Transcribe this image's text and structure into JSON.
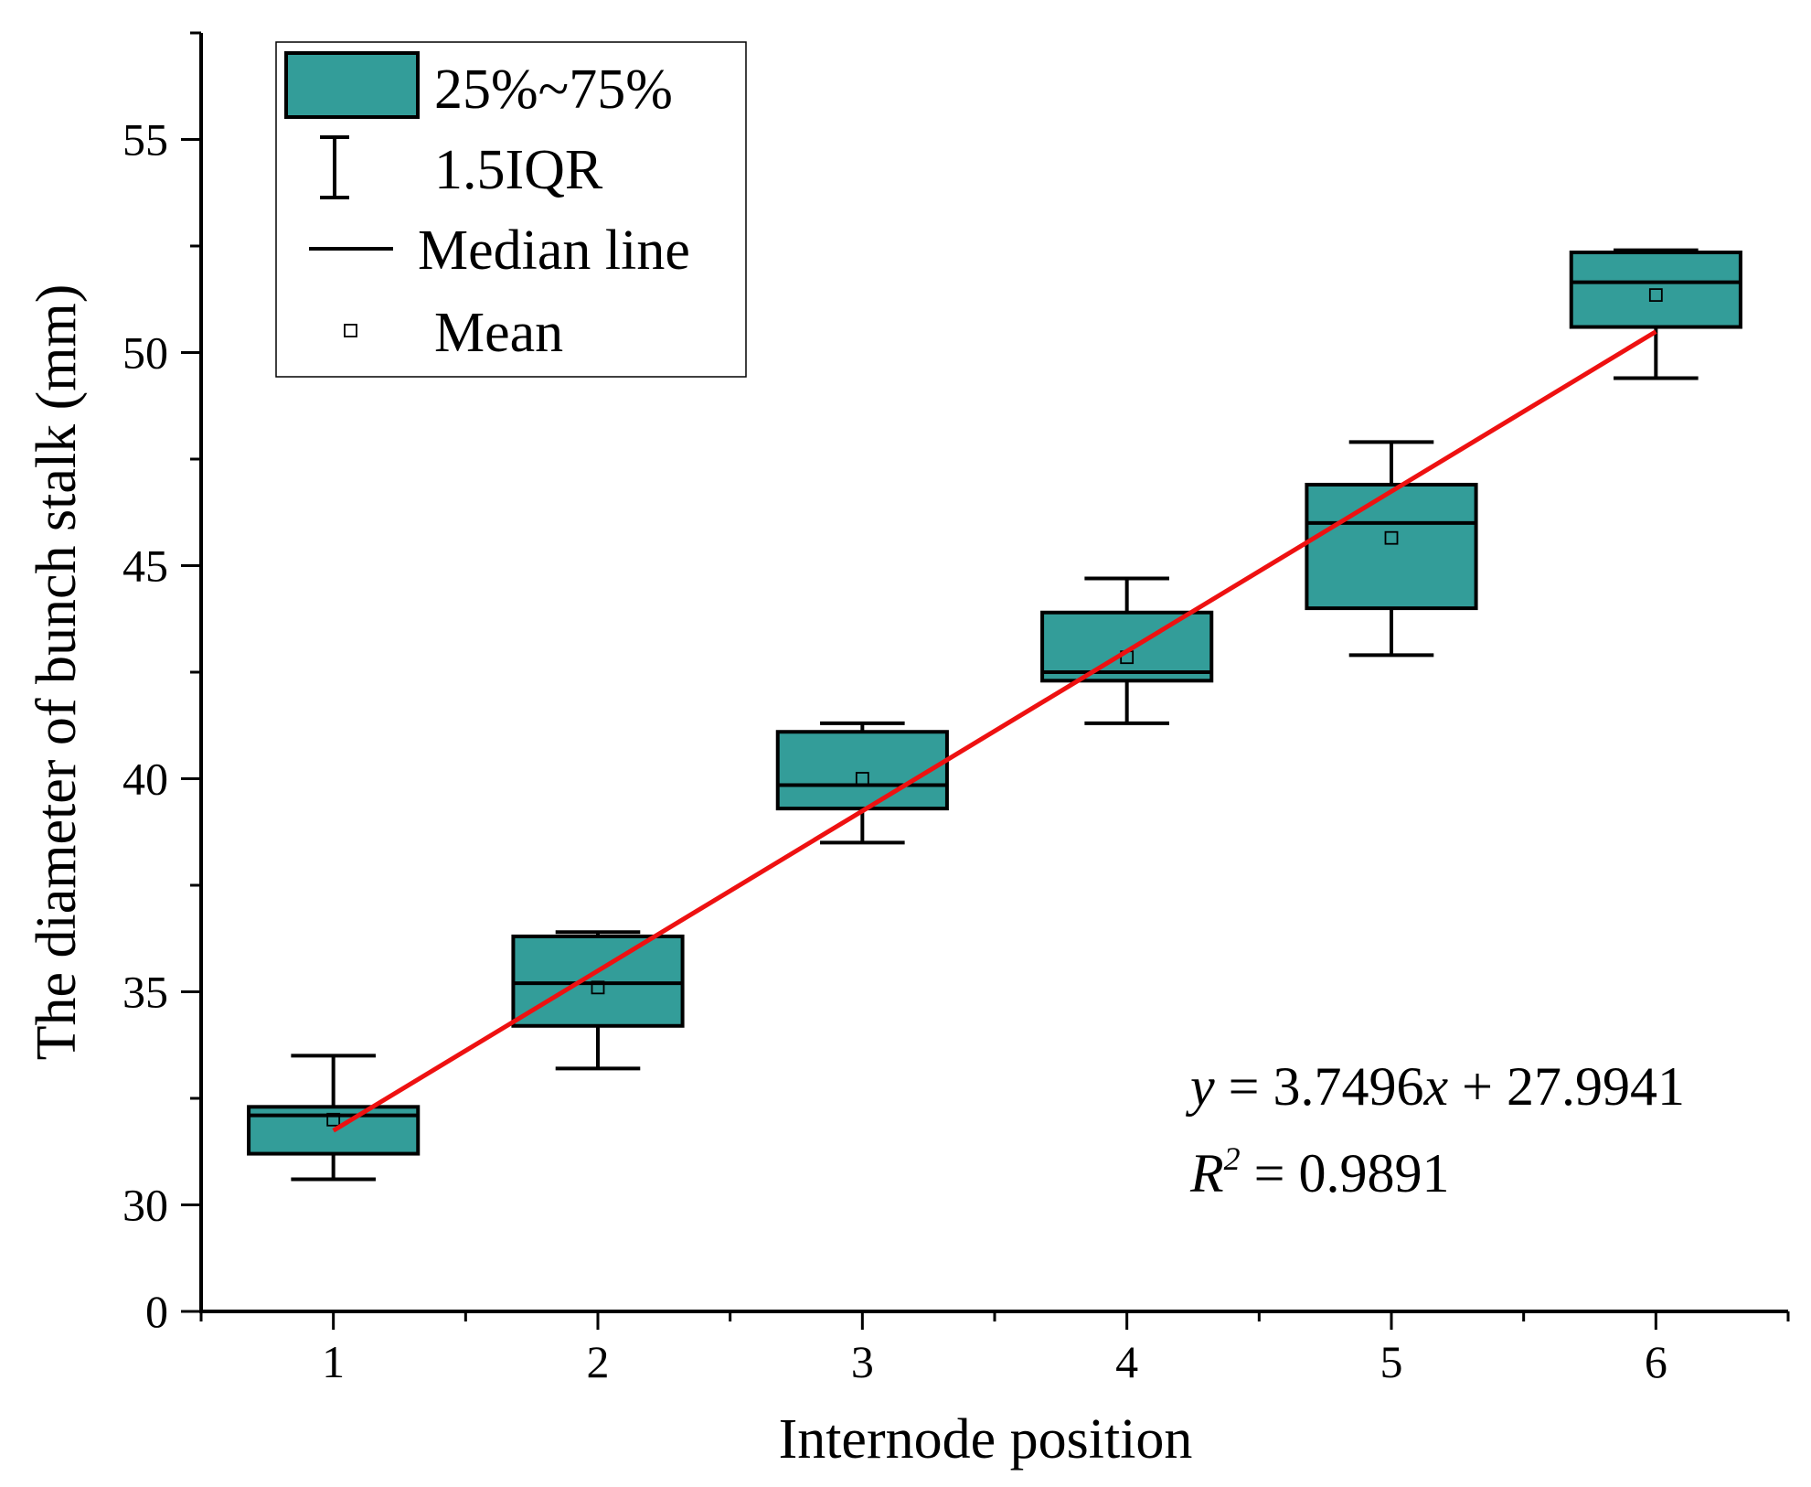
{
  "chart_data": {
    "type": "box",
    "x_label": "Internode position",
    "y_label": "The diameter of bunch stalk (mm)",
    "categories": [
      "1",
      "2",
      "3",
      "4",
      "5",
      "6"
    ],
    "x_values": [
      1,
      2,
      3,
      4,
      5,
      6
    ],
    "y_ticks": [
      "0",
      "30",
      "35",
      "40",
      "45",
      "50",
      "55"
    ],
    "y_tick_values": [
      0,
      30,
      35,
      40,
      45,
      50,
      55
    ],
    "y_axis_break": {
      "from": 0,
      "to": 27.5
    },
    "ylim": [
      27.5,
      57.5
    ],
    "xlim": [
      0.5,
      6.5
    ],
    "boxes": [
      {
        "x": 1,
        "whisker_low": 30.6,
        "q1": 31.2,
        "median": 32.1,
        "q3": 32.3,
        "whisker_high": 33.5,
        "mean": 32.0
      },
      {
        "x": 2,
        "whisker_low": 33.2,
        "q1": 34.2,
        "median": 35.2,
        "q3": 36.3,
        "whisker_high": 36.4,
        "mean": 35.1
      },
      {
        "x": 3,
        "whisker_low": 38.5,
        "q1": 39.3,
        "median": 39.85,
        "q3": 41.1,
        "whisker_high": 41.3,
        "mean": 40.0
      },
      {
        "x": 4,
        "whisker_low": 41.3,
        "q1": 42.3,
        "median": 42.5,
        "q3": 43.9,
        "whisker_high": 44.7,
        "mean": 42.85
      },
      {
        "x": 5,
        "whisker_low": 42.9,
        "q1": 44.0,
        "median": 46.0,
        "q3": 46.9,
        "whisker_high": 47.9,
        "mean": 45.65
      },
      {
        "x": 6,
        "whisker_low": 49.4,
        "q1": 50.6,
        "median": 51.65,
        "q3": 52.35,
        "whisker_high": 52.4,
        "mean": 51.35
      }
    ],
    "fit_line": {
      "slope": 3.7496,
      "intercept": 27.9941,
      "x_range": [
        1,
        6
      ]
    },
    "annotations": {
      "equation_y": "y",
      "equation_mid": " = 3.7496",
      "equation_x": "x",
      "equation_end": " + 27.9941",
      "r2_R": "R",
      "r2_sup": "2",
      "r2_value": " = 0.9891"
    },
    "legend": {
      "position": "top-left",
      "items": [
        "25%~75%",
        "1.5IQR",
        "Median line",
        "Mean"
      ]
    },
    "colors": {
      "box_fill": "#339d99",
      "box_stroke": "#000000",
      "fit_line": "#ee1111",
      "mean_marker_stroke": "#000000"
    }
  }
}
